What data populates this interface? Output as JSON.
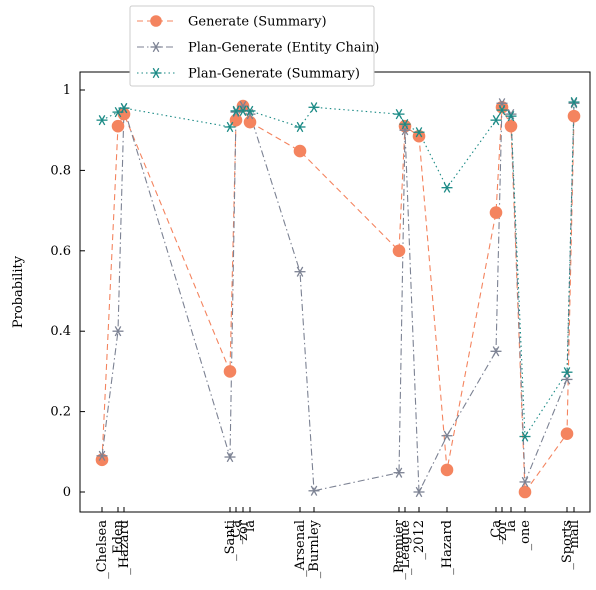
{
  "chart_data": {
    "type": "line",
    "ylabel": "Probability",
    "ylim": [
      -0.06,
      1.0
    ],
    "yticks": [
      0,
      0.2,
      0.4,
      0.6,
      0.8,
      1
    ],
    "ytick_labels": [
      "0",
      "0.2",
      "0.4",
      "0.6",
      "0.8",
      "1"
    ],
    "grid": false,
    "legend_position": "top-left, above plot",
    "categories": [
      "_Chelsea",
      "_Eden",
      "_Hazard",
      "_Santi",
      "_Ca",
      "zor",
      "la",
      "_Arsenal",
      "_Burnley",
      "_Premier",
      "_League",
      "_2012",
      "_Hazard",
      "_Ca",
      "zor",
      "la",
      "_one",
      "_Sports",
      "mail"
    ],
    "series": [
      {
        "name": "Generate (Summary)",
        "color": "#f4845f",
        "marker": "circle",
        "linestyle": "dashed",
        "x": [
          0,
          1,
          2,
          3,
          4,
          5,
          6,
          7,
          9,
          10,
          11,
          12,
          13,
          14,
          15,
          16,
          17,
          18
        ],
        "values": [
          0.08,
          0.91,
          0.94,
          0.3,
          0.925,
          0.96,
          0.92,
          0.848,
          0.6,
          0.91,
          0.885,
          0.055,
          0.695,
          0.957,
          0.91,
          0.0,
          0.145,
          0.935
        ]
      },
      {
        "name": "Plan-Generate (Entity Chain)",
        "color": "#7c8293",
        "marker": "asterisk",
        "linestyle": "dashdot",
        "x": [
          0,
          1,
          2,
          3,
          4,
          5,
          6,
          7,
          8,
          9,
          10,
          11,
          12,
          13,
          14,
          15,
          16,
          17,
          18
        ],
        "values": [
          0.09,
          0.4,
          0.955,
          0.087,
          0.945,
          0.96,
          0.94,
          0.548,
          0.003,
          0.048,
          0.9,
          0.0,
          0.14,
          0.35,
          0.967,
          0.94,
          0.025,
          0.28,
          0.967
        ]
      },
      {
        "name": "Plan-Generate (Summary)",
        "color": "#1a8a85",
        "marker": "asterisk",
        "linestyle": "dotted",
        "x": [
          0,
          1,
          2,
          3,
          4,
          5,
          6,
          7,
          8,
          9,
          10,
          11,
          12,
          13,
          14,
          15,
          16,
          17,
          18
        ],
        "values": [
          0.925,
          0.945,
          0.955,
          0.908,
          0.948,
          0.948,
          0.948,
          0.908,
          0.957,
          0.94,
          0.915,
          0.895,
          0.757,
          0.925,
          0.95,
          0.935,
          0.138,
          0.298,
          0.97
        ]
      }
    ]
  }
}
